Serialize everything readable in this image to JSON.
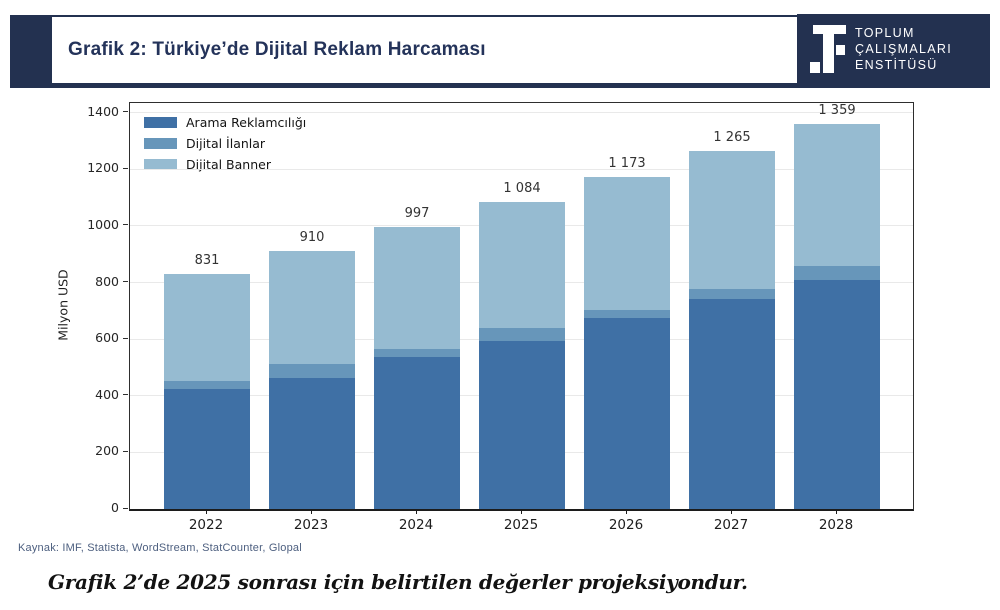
{
  "header": {
    "title": "Grafik 2: Türkiye’de Dijital Reklam Harcaması",
    "accent_color": "#233150",
    "logo": {
      "line1": "TOPLUM",
      "line2": "ÇALIŞMALARI",
      "line3": "ENSTİTÜSÜ"
    }
  },
  "chart_data": {
    "type": "bar",
    "stacked": true,
    "title": "",
    "xlabel": "",
    "ylabel": "Milyon USD",
    "ylim": [
      0,
      1434
    ],
    "yticks": [
      0,
      200,
      400,
      600,
      800,
      1000,
      1200,
      1400
    ],
    "grid": true,
    "legend_position": "upper-left",
    "categories": [
      "2022",
      "2023",
      "2024",
      "2025",
      "2026",
      "2027",
      "2028"
    ],
    "series": [
      {
        "name": "Arama Reklamcılığı",
        "color": "#3f70a5",
        "values": [
          425,
          464,
          537,
          594,
          674,
          742,
          808
        ]
      },
      {
        "name": "Dijital İlanlar",
        "color": "#6796ba",
        "values": [
          28,
          48,
          28,
          44,
          30,
          36,
          49
        ]
      },
      {
        "name": "Dijital Banner",
        "color": "#96bbd1",
        "values": [
          378,
          398,
          432,
          446,
          469,
          487,
          502
        ]
      }
    ],
    "totals": [
      831,
      910,
      997,
      1084,
      1173,
      1265,
      1359
    ],
    "total_labels": [
      "831",
      "910",
      "997",
      "1 084",
      "1 173",
      "1 265",
      "1 359"
    ],
    "axis_color": "#2e2e2e",
    "label_color": "#333333"
  },
  "footer": {
    "source": "Kaynak: IMF, Statista, WordStream, StatCounter, Glopal",
    "caption": "Grafik 2’de 2025 sonrası için belirtilen değerler projeksiyondur."
  }
}
